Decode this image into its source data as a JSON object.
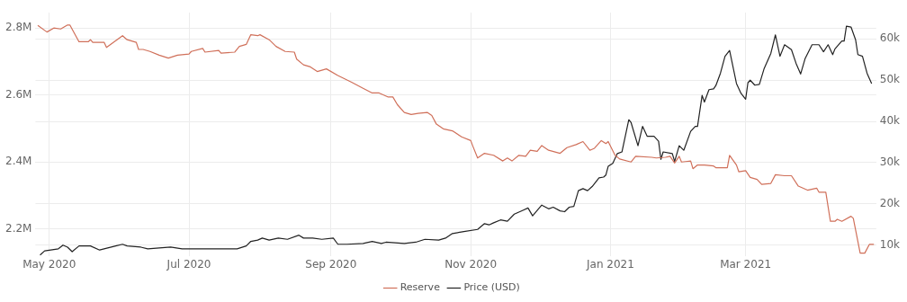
{
  "chart_data": {
    "type": "line",
    "legend": "bottom",
    "grid": true,
    "marker": "none",
    "line_style": "solid",
    "xlim": [
      "2020-04-25",
      "2021-04-27"
    ],
    "xticks": [
      {
        "value": "2020-05-01",
        "label": "May 2020"
      },
      {
        "value": "2020-07-01",
        "label": "Jul 2020"
      },
      {
        "value": "2020-09-01",
        "label": "Sep 2020"
      },
      {
        "value": "2020-11-01",
        "label": "Nov 2020"
      },
      {
        "value": "2021-01-01",
        "label": "Jan 2021"
      },
      {
        "value": "2021-03-01",
        "label": "Mar 2021"
      }
    ],
    "ylim": [
      2120000,
      2846000
    ],
    "yticks": [
      {
        "value": 2200000,
        "label": "2.2M"
      },
      {
        "value": 2400000,
        "label": "2.4M"
      },
      {
        "value": 2600000,
        "label": "2.6M"
      },
      {
        "value": 2800000,
        "label": "2.8M"
      }
    ],
    "y2lim": [
      7400,
      66400
    ],
    "y2ticks": [
      {
        "value": 10000,
        "label": "10k"
      },
      {
        "value": 20000,
        "label": "20k"
      },
      {
        "value": 30000,
        "label": "30k"
      },
      {
        "value": 40000,
        "label": "40k"
      },
      {
        "value": 50000,
        "label": "50k"
      },
      {
        "value": 60000,
        "label": "60k"
      }
    ],
    "series": [
      {
        "name": "Reserve",
        "color": "#d0705a",
        "x": [
          "2020-04-26",
          "2020-04-30",
          "2020-05-03",
          "2020-05-06",
          "2020-05-09",
          "2020-05-10",
          "2020-05-14",
          "2020-05-18",
          "2020-05-19",
          "2020-05-20",
          "2020-05-25",
          "2020-05-26",
          "2020-06-02",
          "2020-06-04",
          "2020-06-08",
          "2020-06-09",
          "2020-06-11",
          "2020-06-14",
          "2020-06-18",
          "2020-06-22",
          "2020-06-26",
          "2020-07-01",
          "2020-07-02",
          "2020-07-07",
          "2020-07-08",
          "2020-07-14",
          "2020-07-15",
          "2020-07-21",
          "2020-07-23",
          "2020-07-26",
          "2020-07-28",
          "2020-07-31",
          "2020-08-01",
          "2020-08-05",
          "2020-08-08",
          "2020-08-12",
          "2020-08-16",
          "2020-08-17",
          "2020-08-20",
          "2020-08-23",
          "2020-08-26",
          "2020-08-30",
          "2020-09-04",
          "2020-09-10",
          "2020-09-15",
          "2020-09-19",
          "2020-09-22",
          "2020-09-26",
          "2020-09-28",
          "2020-09-30",
          "2020-10-03",
          "2020-10-06",
          "2020-10-09",
          "2020-10-13",
          "2020-10-15",
          "2020-10-17",
          "2020-10-20",
          "2020-10-24",
          "2020-10-28",
          "2020-11-01",
          "2020-11-02",
          "2020-11-04",
          "2020-11-07",
          "2020-11-11",
          "2020-11-15",
          "2020-11-17",
          "2020-11-19",
          "2020-11-22",
          "2020-11-25",
          "2020-11-27",
          "2020-11-30",
          "2020-12-02",
          "2020-12-05",
          "2020-12-10",
          "2020-12-13",
          "2020-12-17",
          "2020-12-20",
          "2020-12-23",
          "2020-12-25",
          "2020-12-28",
          "2020-12-30",
          "2020-12-31",
          "2021-01-03",
          "2021-01-05",
          "2021-01-10",
          "2021-01-12",
          "2021-01-19",
          "2021-01-21",
          "2021-01-25",
          "2021-01-27",
          "2021-01-29",
          "2021-01-31",
          "2021-02-01",
          "2021-02-05",
          "2021-02-06",
          "2021-02-08",
          "2021-02-11",
          "2021-02-15",
          "2021-02-16",
          "2021-02-21",
          "2021-02-22",
          "2021-02-25",
          "2021-02-26",
          "2021-03-01",
          "2021-03-03",
          "2021-03-06",
          "2021-03-08",
          "2021-03-12",
          "2021-03-14",
          "2021-03-18",
          "2021-03-21",
          "2021-03-24",
          "2021-03-28",
          "2021-04-01",
          "2021-04-02",
          "2021-04-05",
          "2021-04-07",
          "2021-04-09",
          "2021-04-10",
          "2021-04-12",
          "2021-04-16",
          "2021-04-17",
          "2021-04-20",
          "2021-04-22",
          "2021-04-24",
          "2021-04-26"
        ],
        "values": [
          2808000,
          2788000,
          2800000,
          2797000,
          2809000,
          2809000,
          2759000,
          2759000,
          2765000,
          2757000,
          2757000,
          2742000,
          2777000,
          2765000,
          2757000,
          2736000,
          2736000,
          2730000,
          2719000,
          2710000,
          2719000,
          2722000,
          2730000,
          2739000,
          2728000,
          2733000,
          2725000,
          2728000,
          2745000,
          2751000,
          2780000,
          2777000,
          2780000,
          2765000,
          2745000,
          2730000,
          2728000,
          2707000,
          2690000,
          2684000,
          2670000,
          2678000,
          2658000,
          2638000,
          2620000,
          2606000,
          2606000,
          2594000,
          2594000,
          2571000,
          2548000,
          2542000,
          2545000,
          2548000,
          2539000,
          2513000,
          2499000,
          2493000,
          2475000,
          2464000,
          2446000,
          2412000,
          2426000,
          2420000,
          2403000,
          2412000,
          2403000,
          2420000,
          2417000,
          2435000,
          2432000,
          2449000,
          2435000,
          2426000,
          2443000,
          2452000,
          2461000,
          2435000,
          2441000,
          2464000,
          2455000,
          2461000,
          2420000,
          2409000,
          2400000,
          2417000,
          2414000,
          2412000,
          2414000,
          2417000,
          2397000,
          2417000,
          2400000,
          2403000,
          2380000,
          2391000,
          2391000,
          2388000,
          2383000,
          2383000,
          2420000,
          2391000,
          2371000,
          2374000,
          2354000,
          2348000,
          2333000,
          2336000,
          2362000,
          2359000,
          2359000,
          2328000,
          2316000,
          2322000,
          2310000,
          2310000,
          2223000,
          2223000,
          2229000,
          2223000,
          2238000,
          2232000,
          2128000,
          2128000,
          2154000,
          2154000
        ]
      },
      {
        "name": "Price (USD)",
        "color": "#222222",
        "axis": "y2",
        "x": [
          "2020-04-27",
          "2020-04-29",
          "2020-05-05",
          "2020-05-07",
          "2020-05-09",
          "2020-05-11",
          "2020-05-14",
          "2020-05-19",
          "2020-05-23",
          "2020-05-30",
          "2020-06-02",
          "2020-06-04",
          "2020-06-10",
          "2020-06-13",
          "2020-06-23",
          "2020-06-28",
          "2020-07-06",
          "2020-07-14",
          "2020-07-22",
          "2020-07-26",
          "2020-07-28",
          "2020-07-31",
          "2020-08-02",
          "2020-08-05",
          "2020-08-09",
          "2020-08-13",
          "2020-08-18",
          "2020-08-20",
          "2020-08-24",
          "2020-08-28",
          "2020-09-02",
          "2020-09-04",
          "2020-09-08",
          "2020-09-15",
          "2020-09-19",
          "2020-09-23",
          "2020-09-25",
          "2020-10-03",
          "2020-10-08",
          "2020-10-12",
          "2020-10-18",
          "2020-10-21",
          "2020-10-24",
          "2020-10-29",
          "2020-11-04",
          "2020-11-07",
          "2020-11-09",
          "2020-11-11",
          "2020-11-14",
          "2020-11-17",
          "2020-11-20",
          "2020-11-24",
          "2020-11-26",
          "2020-11-28",
          "2020-12-02",
          "2020-12-05",
          "2020-12-07",
          "2020-12-10",
          "2020-12-12",
          "2020-12-14",
          "2020-12-16",
          "2020-12-18",
          "2020-12-20",
          "2020-12-22",
          "2020-12-24",
          "2020-12-27",
          "2020-12-29",
          "2020-12-30",
          "2020-12-31",
          "2021-01-02",
          "2021-01-04",
          "2021-01-06",
          "2021-01-09",
          "2021-01-10",
          "2021-01-13",
          "2021-01-15",
          "2021-01-17",
          "2021-01-20",
          "2021-01-22",
          "2021-01-23",
          "2021-01-24",
          "2021-01-28",
          "2021-01-29",
          "2021-01-31",
          "2021-02-02",
          "2021-02-05",
          "2021-02-07",
          "2021-02-08",
          "2021-02-10",
          "2021-02-11",
          "2021-02-13",
          "2021-02-15",
          "2021-02-16",
          "2021-02-18",
          "2021-02-20",
          "2021-02-22",
          "2021-02-25",
          "2021-02-27",
          "2021-03-01",
          "2021-03-02",
          "2021-03-03",
          "2021-03-05",
          "2021-03-07",
          "2021-03-09",
          "2021-03-12",
          "2021-03-14",
          "2021-03-16",
          "2021-03-18",
          "2021-03-21",
          "2021-03-23",
          "2021-03-25",
          "2021-03-27",
          "2021-03-30",
          "2021-04-02",
          "2021-04-04",
          "2021-04-06",
          "2021-04-08",
          "2021-04-09",
          "2021-04-12",
          "2021-04-13",
          "2021-04-14",
          "2021-04-16",
          "2021-04-18",
          "2021-04-19",
          "2021-04-21",
          "2021-04-23",
          "2021-04-25"
        ],
        "values": [
          7600,
          8600,
          9100,
          10000,
          9500,
          8400,
          9800,
          9800,
          8800,
          9800,
          10200,
          9800,
          9500,
          9100,
          9500,
          9100,
          9100,
          9100,
          9100,
          9800,
          10900,
          11200,
          11700,
          11200,
          11700,
          11400,
          12400,
          11700,
          11700,
          11400,
          11700,
          10200,
          10200,
          10400,
          10900,
          10400,
          10700,
          10400,
          10700,
          11400,
          11200,
          11700,
          12800,
          13300,
          13800,
          15200,
          14900,
          15400,
          16100,
          15800,
          17500,
          18500,
          19000,
          17100,
          19700,
          18800,
          19200,
          18300,
          18100,
          19200,
          19400,
          23200,
          23700,
          23200,
          24200,
          26300,
          26500,
          27000,
          29100,
          29800,
          32200,
          32600,
          40400,
          39700,
          34100,
          38800,
          36400,
          36400,
          35200,
          30800,
          32600,
          32200,
          30300,
          34100,
          33000,
          37600,
          38800,
          38800,
          46300,
          44700,
          47700,
          47900,
          48700,
          51700,
          55800,
          57200,
          49200,
          46800,
          45400,
          49400,
          50000,
          48800,
          49000,
          52700,
          56500,
          61000,
          55800,
          58600,
          57400,
          54100,
          51500,
          55300,
          58600,
          58600,
          56900,
          58600,
          56200,
          57600,
          59500,
          59500,
          63100,
          62900,
          59800,
          56200,
          55800,
          51700,
          49200
        ]
      }
    ]
  }
}
